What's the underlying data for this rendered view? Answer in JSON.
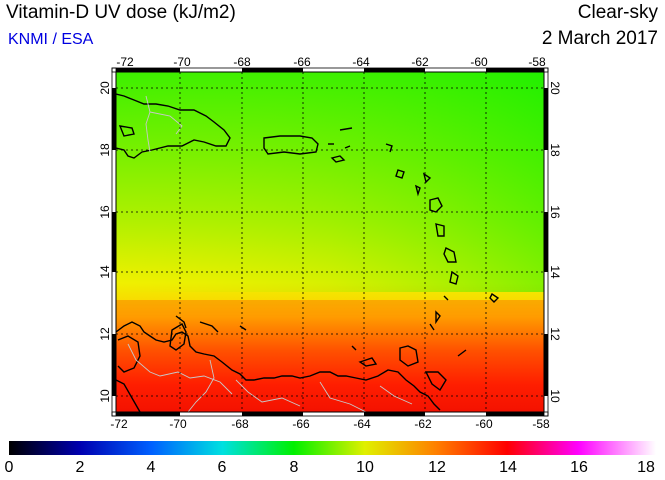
{
  "header": {
    "title": "Vitamin-D UV dose (kJ/m2)",
    "source": "KNMI / ESA",
    "product": "Clear-sky",
    "date": "2 March 2017"
  },
  "map": {
    "lon_range": [
      -72,
      -58
    ],
    "lat_range": [
      9.5,
      20.5
    ],
    "lon_ticks": [
      "-72",
      "-70",
      "-68",
      "-66",
      "-64",
      "-62",
      "-60",
      "-58"
    ],
    "lat_ticks": [
      "20",
      "18",
      "16",
      "14",
      "12",
      "10"
    ],
    "value_bands_by_latitude": [
      {
        "lat": 20.5,
        "value": 8.0
      },
      {
        "lat": 17.0,
        "value": 8.6
      },
      {
        "lat": 14.5,
        "value": 9.6
      },
      {
        "lat": 13.0,
        "value": 10.4
      },
      {
        "lat": 11.8,
        "value": 11.6
      },
      {
        "lat": 10.5,
        "value": 12.4
      },
      {
        "lat": 9.5,
        "value": 12.6
      }
    ]
  },
  "colorbar": {
    "min": 0,
    "max": 18,
    "labels": [
      "0",
      "2",
      "4",
      "6",
      "8",
      "10",
      "12",
      "14",
      "16",
      "18"
    ]
  },
  "colors": {
    "source_text": "#0000e0",
    "grid": "#000000",
    "coast": "#000000",
    "border": "#c8c8c8"
  }
}
